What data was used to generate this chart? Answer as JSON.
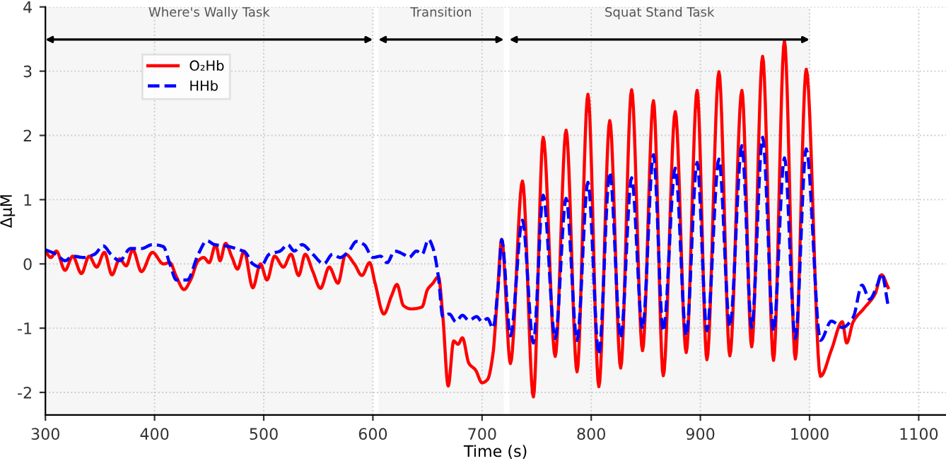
{
  "chart_data": {
    "type": "line",
    "xlabel": "Time (s)",
    "ylabel": "ΔμM",
    "xlim": [
      300,
      1125
    ],
    "ylim": [
      -2.35,
      4
    ],
    "xticks": [
      300,
      400,
      500,
      600,
      700,
      800,
      900,
      1000,
      1100
    ],
    "yticks": [
      -2,
      -1,
      0,
      1,
      2,
      3,
      4
    ],
    "grid": true,
    "legend": "top left",
    "bands": [
      {
        "axis": "x",
        "from": 300,
        "to": 600,
        "label": "Where's Wally Task",
        "color": "#000000"
      },
      {
        "axis": "x",
        "from": 605,
        "to": 720,
        "label": "Transition",
        "color": "#000000"
      },
      {
        "axis": "x",
        "from": 725,
        "to": 1000,
        "label": "Squat Stand Task",
        "color": "#000000"
      }
    ],
    "series": [
      {
        "name": "O₂Hb",
        "color": "#ff0000",
        "line_style": "solid",
        "x": [
          300,
          305,
          310,
          318,
          325,
          333,
          340,
          347,
          354,
          361,
          368,
          374,
          380,
          388,
          398,
          408,
          414,
          420,
          427,
          433,
          440,
          445,
          450,
          456,
          460,
          465,
          471,
          476,
          482,
          490,
          497,
          503,
          510,
          518,
          525,
          532,
          538,
          545,
          552,
          560,
          568,
          575,
          583,
          590,
          597,
          602,
          610,
          617,
          622,
          628,
          635,
          645,
          650,
          655,
          660,
          664,
          669,
          674,
          678,
          682,
          688,
          694,
          700,
          705,
          710,
          714,
          718,
          726,
          737,
          747,
          756,
          767,
          777,
          787,
          797,
          807,
          817,
          827,
          837,
          847,
          857,
          866,
          877,
          887,
          897,
          906,
          917,
          927,
          938,
          947,
          957,
          967,
          977,
          987,
          997,
          1010,
          1020,
          1030,
          1034,
          1040,
          1050,
          1060,
          1066,
          1072
        ],
        "values": [
          0.2,
          0.1,
          0.2,
          -0.1,
          0.12,
          -0.15,
          0.12,
          -0.05,
          0.18,
          -0.17,
          0.08,
          -0.03,
          0.22,
          -0.12,
          0.18,
          0.0,
          0.02,
          -0.2,
          -0.4,
          -0.25,
          0.05,
          0.1,
          0.02,
          0.3,
          0.05,
          0.32,
          0.1,
          -0.08,
          0.2,
          -0.37,
          0.0,
          -0.25,
          0.12,
          -0.05,
          0.15,
          -0.18,
          0.15,
          -0.12,
          -0.38,
          -0.05,
          -0.3,
          0.15,
          0.0,
          -0.18,
          0.02,
          -0.3,
          -0.78,
          -0.5,
          -0.32,
          -0.65,
          -0.7,
          -0.67,
          -0.4,
          -0.3,
          -0.2,
          -0.8,
          -1.9,
          -1.2,
          -1.25,
          -1.15,
          -1.55,
          -1.65,
          -1.85,
          -1.8,
          -1.4,
          -0.5,
          0.38,
          -1.55,
          1.29,
          -2.07,
          1.97,
          -1.44,
          2.08,
          -1.68,
          2.64,
          -1.91,
          2.23,
          -1.62,
          2.71,
          -1.35,
          2.54,
          -1.74,
          2.37,
          -1.38,
          2.7,
          -1.49,
          2.99,
          -1.43,
          2.7,
          -1.29,
          3.23,
          -1.5,
          3.47,
          -1.48,
          3.03,
          -1.75,
          -1.34,
          -0.9,
          -1.23,
          -0.9,
          -0.69,
          -0.47,
          -0.17,
          -0.37
        ]
      },
      {
        "name": "HHb",
        "color": "#0000ff",
        "line_style": "dashed",
        "x": [
          300,
          310,
          318,
          325,
          335,
          345,
          353,
          360,
          368,
          378,
          388,
          398,
          408,
          414,
          420,
          430,
          440,
          448,
          455,
          465,
          478,
          483,
          490,
          497,
          505,
          515,
          522,
          528,
          535,
          545,
          555,
          563,
          570,
          578,
          585,
          592,
          600,
          607,
          613,
          620,
          628,
          633,
          640,
          645,
          651,
          655,
          660,
          664,
          670,
          676,
          682,
          688,
          695,
          700,
          705,
          710,
          715,
          718,
          726,
          737,
          747,
          756,
          767,
          777,
          787,
          797,
          807,
          817,
          827,
          837,
          847,
          857,
          866,
          877,
          887,
          897,
          906,
          917,
          927,
          938,
          947,
          957,
          967,
          977,
          987,
          997,
          1010,
          1020,
          1030,
          1040,
          1048,
          1055,
          1062,
          1066,
          1072
        ],
        "values": [
          0.22,
          0.15,
          0.05,
          0.12,
          0.1,
          0.15,
          0.28,
          0.15,
          0.05,
          0.24,
          0.24,
          0.3,
          0.27,
          0.0,
          -0.25,
          -0.25,
          0.15,
          0.36,
          0.3,
          0.28,
          0.22,
          0.18,
          0.0,
          -0.05,
          0.15,
          0.2,
          0.3,
          0.2,
          0.3,
          0.15,
          0.0,
          0.15,
          0.1,
          0.2,
          0.35,
          0.3,
          0.1,
          0.12,
          0.02,
          0.2,
          0.15,
          0.1,
          0.2,
          0.15,
          0.38,
          0.25,
          -0.2,
          -0.82,
          -0.78,
          -0.9,
          -0.8,
          -0.88,
          -0.82,
          -0.9,
          -0.85,
          -1.0,
          -0.3,
          0.38,
          -1.12,
          0.68,
          -1.23,
          1.07,
          -1.16,
          1.02,
          -1.19,
          1.27,
          -1.41,
          1.43,
          -1.16,
          1.34,
          -1.01,
          1.7,
          -1.05,
          1.49,
          -1.12,
          1.58,
          -1.04,
          1.63,
          -0.98,
          1.84,
          -0.99,
          1.97,
          -1.05,
          1.65,
          -1.16,
          1.79,
          -1.19,
          -0.89,
          -0.99,
          -0.83,
          -0.33,
          -0.55,
          -0.33,
          -0.15,
          -0.65
        ]
      }
    ]
  }
}
